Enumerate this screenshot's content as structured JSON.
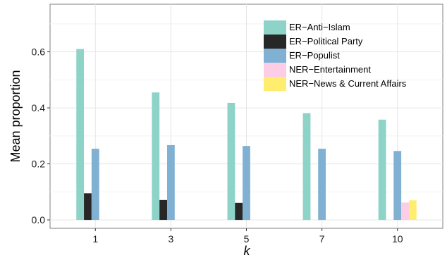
{
  "chart_data": {
    "type": "bar",
    "title": "",
    "xlabel": "k",
    "ylabel": "Mean proportion",
    "categories": [
      "1",
      "3",
      "5",
      "7",
      "10"
    ],
    "ylim": [
      -0.03,
      0.77
    ],
    "yticks": [
      0.0,
      0.2,
      0.4,
      0.6
    ],
    "ytick_labels": [
      "0.0",
      "0.2",
      "0.4",
      "0.6"
    ],
    "grid": true,
    "legend_position": "top-right",
    "series": [
      {
        "name": "ER−Anti−Islam",
        "color": "#8dd3c7",
        "values": [
          0.61,
          0.455,
          0.418,
          0.381,
          0.358
        ]
      },
      {
        "name": "ER−Political Party",
        "color": "#272727",
        "values": [
          0.095,
          0.071,
          0.061,
          0,
          0
        ]
      },
      {
        "name": "ER−Populist",
        "color": "#80b1d3",
        "values": [
          0.254,
          0.267,
          0.264,
          0.254,
          0.246
        ]
      },
      {
        "name": "NER−Entertainment",
        "color": "#fccde5",
        "values": [
          0,
          0,
          0,
          0,
          0.062
        ]
      },
      {
        "name": "NER−News & Current Affairs",
        "color": "#ffed6f",
        "values": [
          0,
          0,
          0,
          0,
          0.07
        ]
      }
    ]
  }
}
